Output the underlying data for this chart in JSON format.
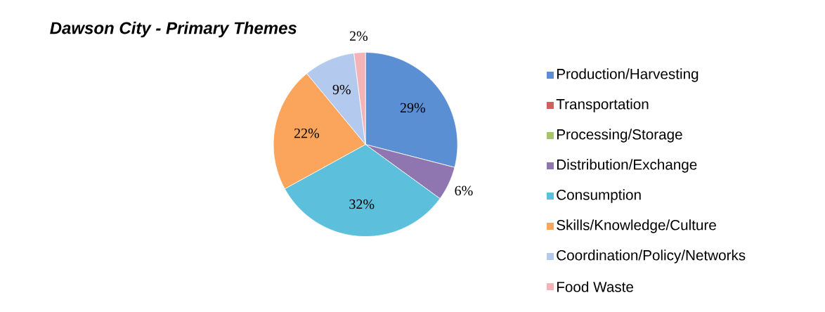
{
  "chart_data": {
    "type": "pie",
    "title": "Dawson City - Primary Themes",
    "categories": [
      "Production/Harvesting",
      "Transportation",
      "Processing/Storage",
      "Distribution/Exchange",
      "Consumption",
      "Skills/Knowledge/Culture",
      "Coordination/Policy/Networks",
      "Food Waste"
    ],
    "values": [
      29,
      0,
      0,
      6,
      32,
      22,
      9,
      2
    ],
    "colors": [
      "#5b8fd4",
      "#d0605c",
      "#a6c46a",
      "#9076b0",
      "#5cc0dc",
      "#fba45c",
      "#b4c9ee",
      "#f4b3b6"
    ],
    "value_labels": [
      "29%",
      null,
      null,
      "6%",
      "32%",
      "22%",
      "9%",
      "2%"
    ],
    "legend": "right"
  }
}
